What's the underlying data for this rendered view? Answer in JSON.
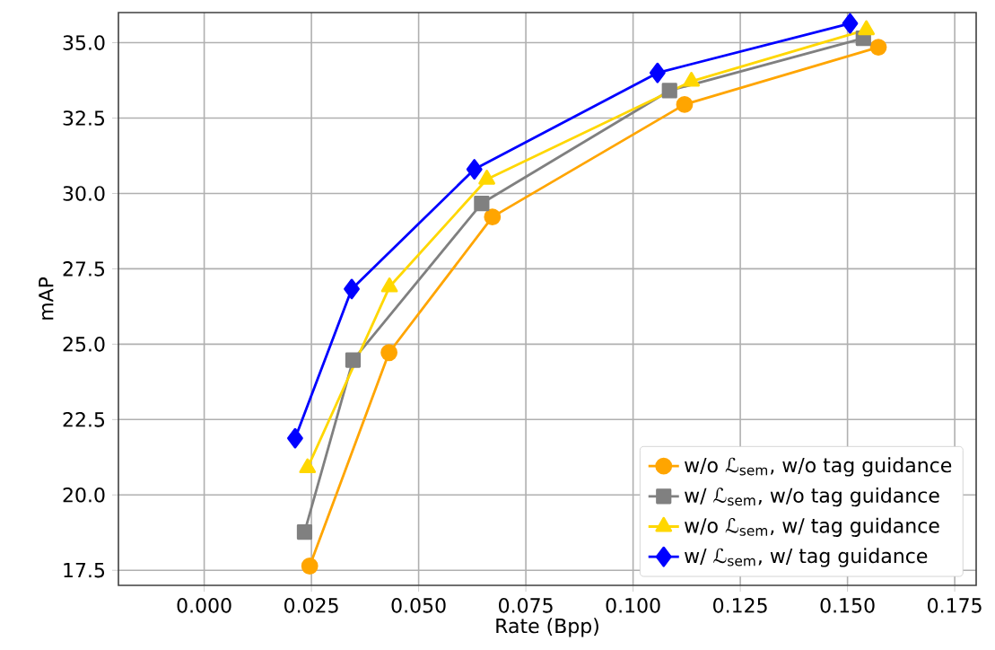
{
  "chart_data": {
    "type": "line",
    "xlabel": "Rate (Bpp)",
    "ylabel": "mAP",
    "xlim": [
      -0.02,
      0.18
    ],
    "ylim": [
      17,
      36
    ],
    "xticks": [
      {
        "value": 0,
        "label": "0.000"
      },
      {
        "value": 0.025,
        "label": "0.025"
      },
      {
        "value": 0.05,
        "label": "0.050"
      },
      {
        "value": 0.075,
        "label": "0.075"
      },
      {
        "value": 0.1,
        "label": "0.100"
      },
      {
        "value": 0.125,
        "label": "0.125"
      },
      {
        "value": 0.15,
        "label": "0.150"
      },
      {
        "value": 0.175,
        "label": "0.175"
      }
    ],
    "yticks": [
      {
        "value": 17.5,
        "label": "17.5"
      },
      {
        "value": 20,
        "label": "20.0"
      },
      {
        "value": 22.5,
        "label": "22.5"
      },
      {
        "value": 25,
        "label": "25.0"
      },
      {
        "value": 27.5,
        "label": "27.5"
      },
      {
        "value": 30,
        "label": "30.0"
      },
      {
        "value": 32.5,
        "label": "32.5"
      },
      {
        "value": 35,
        "label": "35.0"
      }
    ],
    "grid": true,
    "legend": "bottom right",
    "line_style": "solid",
    "series": [
      {
        "name": "w/o ℒ$_{sem}$, w/o tag guidance",
        "color": "#ffa500",
        "marker": "circle",
        "x": [
          0.0246,
          0.0431,
          0.0672,
          0.112,
          0.1572
        ],
        "values": [
          17.64,
          24.72,
          29.22,
          32.95,
          34.85
        ]
      },
      {
        "name": "w/ ℒ$_{sem}$, w/o tag guidance",
        "color": "#808080",
        "marker": "square",
        "x": [
          0.0234,
          0.0347,
          0.0647,
          0.1085,
          0.1537
        ],
        "values": [
          18.77,
          24.47,
          29.67,
          33.41,
          35.15
        ]
      },
      {
        "name": "w/o ℒ$_{sem}$, w/ tag guidance",
        "color": "#ffd700",
        "marker": "triangle",
        "x": [
          0.0241,
          0.0432,
          0.0659,
          0.1136,
          0.1544
        ],
        "values": [
          20.9,
          26.9,
          30.47,
          33.72,
          35.43
        ]
      },
      {
        "name": "w/ ℒ$_{sem}$, w/ tag guidance",
        "color": "#0000ff",
        "marker": "diamond",
        "x": [
          0.0212,
          0.0344,
          0.063,
          0.1057,
          0.1506
        ],
        "values": [
          21.88,
          26.83,
          30.8,
          34.0,
          35.64
        ]
      }
    ]
  }
}
